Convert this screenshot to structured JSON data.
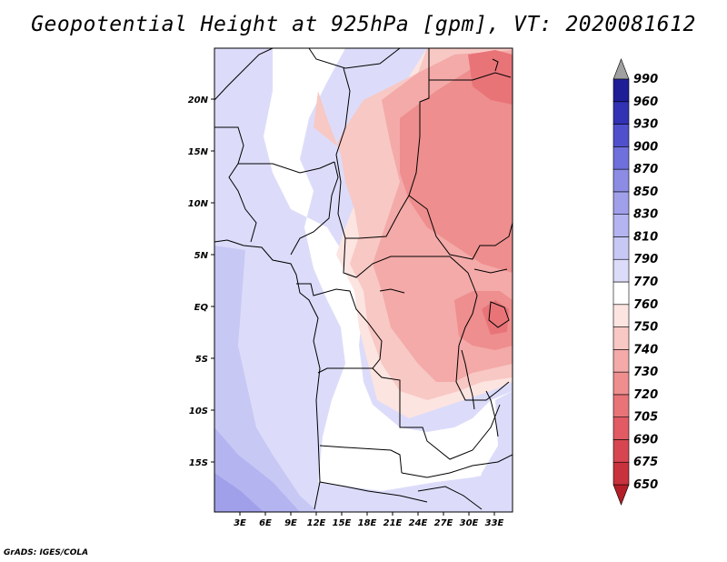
{
  "title": "Geopotential Height at 925hPa [gpm], VT: 2020081612",
  "credit": "GrADS: IGES/COLA",
  "map": {
    "lat_labels": [
      "20N",
      "15N",
      "10N",
      "5N",
      "EQ",
      "5S",
      "10S",
      "15S"
    ],
    "lon_labels": [
      "3E",
      "6E",
      "9E",
      "12E",
      "15E",
      "18E",
      "21E",
      "24E",
      "27E",
      "30E",
      "33E"
    ]
  },
  "colorbar": {
    "levels": [
      "650",
      "675",
      "690",
      "705",
      "720",
      "730",
      "740",
      "750",
      "760",
      "770",
      "790",
      "810",
      "830",
      "850",
      "870",
      "900",
      "930",
      "960",
      "990"
    ],
    "colors": [
      "#b41e28",
      "#c8323c",
      "#d74650",
      "#e15a64",
      "#e87478",
      "#ee8e8e",
      "#f3aaa8",
      "#f8c8c4",
      "#fce4e0",
      "#ffffff",
      "#dcdcfa",
      "#c8c8f5",
      "#b4b4f0",
      "#a0a0ea",
      "#8c8ce4",
      "#7070dc",
      "#5050cc",
      "#3232b4",
      "#1e1e96",
      "#0f0f78"
    ]
  }
}
